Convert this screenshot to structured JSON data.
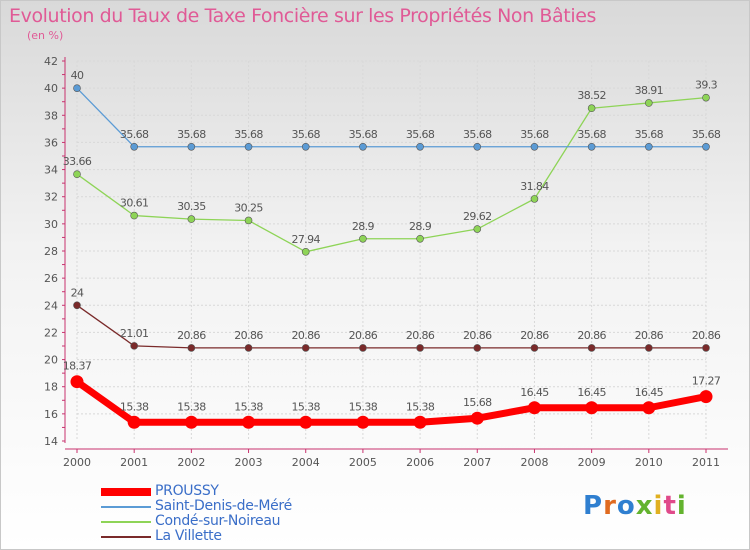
{
  "title": "Evolution du Taux de Taxe Foncière sur les Propriétés Non Bâties",
  "unit_label": "(en %)",
  "logo_text": "Proxiti",
  "chart_data": {
    "type": "line",
    "title": "Evolution du Taux de Taxe Foncière sur les Propriétés Non Bâties",
    "ylabel": "(en %)",
    "xlabel": "",
    "x": [
      "2000",
      "2001",
      "2002",
      "2003",
      "2004",
      "2005",
      "2006",
      "2007",
      "2008",
      "2009",
      "2010",
      "2011"
    ],
    "ylim": [
      14,
      42
    ],
    "yticks": [
      14,
      16,
      18,
      20,
      22,
      24,
      26,
      28,
      30,
      32,
      34,
      36,
      38,
      40,
      42
    ],
    "grid": true,
    "legend_position": "bottom-left",
    "series": [
      {
        "name": "PROUSSY",
        "color": "#ff0000",
        "values": [
          18.37,
          15.38,
          15.38,
          15.38,
          15.38,
          15.38,
          15.38,
          15.68,
          16.45,
          16.45,
          16.45,
          17.27
        ],
        "labels": [
          "18.37",
          "15.38",
          "15.38",
          "15.38",
          "15.38",
          "15.38",
          "15.38",
          "15.68",
          "16.45",
          "16.45",
          "16.45",
          "17.27"
        ]
      },
      {
        "name": "Saint-Denis-de-Méré",
        "color": "#5b9bd5",
        "values": [
          40,
          35.68,
          35.68,
          35.68,
          35.68,
          35.68,
          35.68,
          35.68,
          35.68,
          35.68,
          35.68,
          35.68
        ],
        "labels": [
          "40",
          "35.68",
          "35.68",
          "35.68",
          "35.68",
          "35.68",
          "35.68",
          "35.68",
          "35.68",
          "35.68",
          "35.68",
          "35.68"
        ]
      },
      {
        "name": "Condé-sur-Noireau",
        "color": "#8ed457",
        "values": [
          33.66,
          30.61,
          30.35,
          30.25,
          27.94,
          28.9,
          28.9,
          29.62,
          31.84,
          38.52,
          38.91,
          39.3
        ],
        "labels": [
          "33.66",
          "30.61",
          "30.35",
          "30.25",
          "27.94",
          "28.9",
          "28.9",
          "29.62",
          "31.84",
          "38.52",
          "38.91",
          "39.3"
        ]
      },
      {
        "name": "La Villette",
        "color": "#7a2a2a",
        "values": [
          24,
          21.01,
          20.86,
          20.86,
          20.86,
          20.86,
          20.86,
          20.86,
          20.86,
          20.86,
          20.86,
          20.86
        ],
        "labels": [
          "24",
          "21.01",
          "20.86",
          "20.86",
          "20.86",
          "20.86",
          "20.86",
          "20.86",
          "20.86",
          "20.86",
          "20.86",
          "20.86"
        ]
      }
    ]
  }
}
